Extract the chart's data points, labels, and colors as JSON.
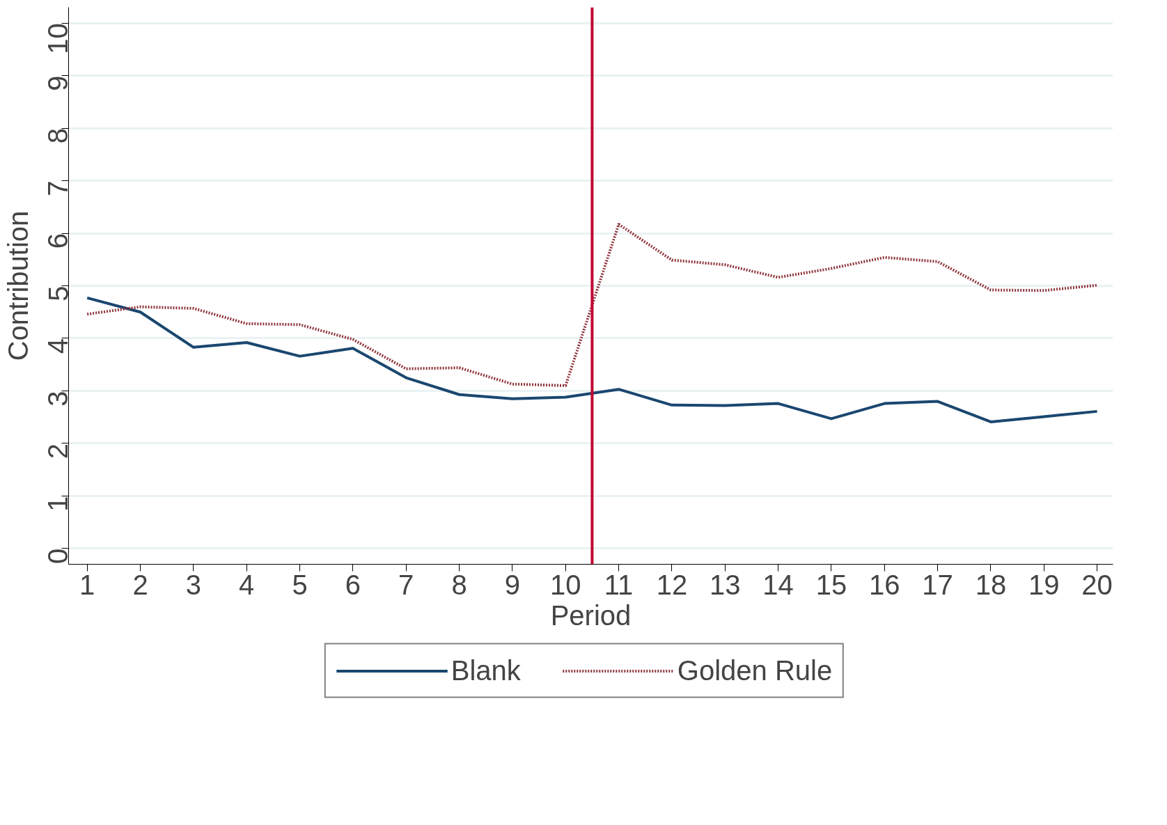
{
  "chart_data": {
    "type": "line",
    "xlabel": "Period",
    "ylabel": "Contribution",
    "x": [
      1,
      2,
      3,
      4,
      5,
      6,
      7,
      8,
      9,
      10,
      11,
      12,
      13,
      14,
      15,
      16,
      17,
      18,
      19,
      20
    ],
    "series": [
      {
        "name": "Blank",
        "color": "#1a476f",
        "line_style": "solid",
        "values": [
          4.77,
          4.5,
          3.83,
          3.92,
          3.66,
          3.81,
          3.25,
          2.93,
          2.85,
          2.88,
          3.03,
          2.73,
          2.72,
          2.76,
          2.47,
          2.76,
          2.8,
          2.41,
          2.51,
          2.61
        ]
      },
      {
        "name": "Golden Rule",
        "color": "#90353b",
        "line_style": "dotted",
        "values": [
          4.46,
          4.6,
          4.57,
          4.28,
          4.26,
          3.98,
          3.42,
          3.44,
          3.13,
          3.1,
          6.17,
          5.49,
          5.4,
          5.16,
          5.33,
          5.54,
          5.46,
          4.92,
          4.91,
          5.01
        ]
      }
    ],
    "xlim": [
      0.65,
      20.3
    ],
    "ylim": [
      -0.3,
      10.3
    ],
    "xticks": [
      1,
      2,
      3,
      4,
      5,
      6,
      7,
      8,
      9,
      10,
      11,
      12,
      13,
      14,
      15,
      16,
      17,
      18,
      19,
      20
    ],
    "yticks": [
      0,
      1,
      2,
      3,
      4,
      5,
      6,
      7,
      8,
      9,
      10
    ],
    "ref_lines": [
      {
        "axis": "x",
        "value": 10.5,
        "color": "#c10534"
      }
    ],
    "grid": "y",
    "legend": "bottom",
    "marker": "none"
  }
}
